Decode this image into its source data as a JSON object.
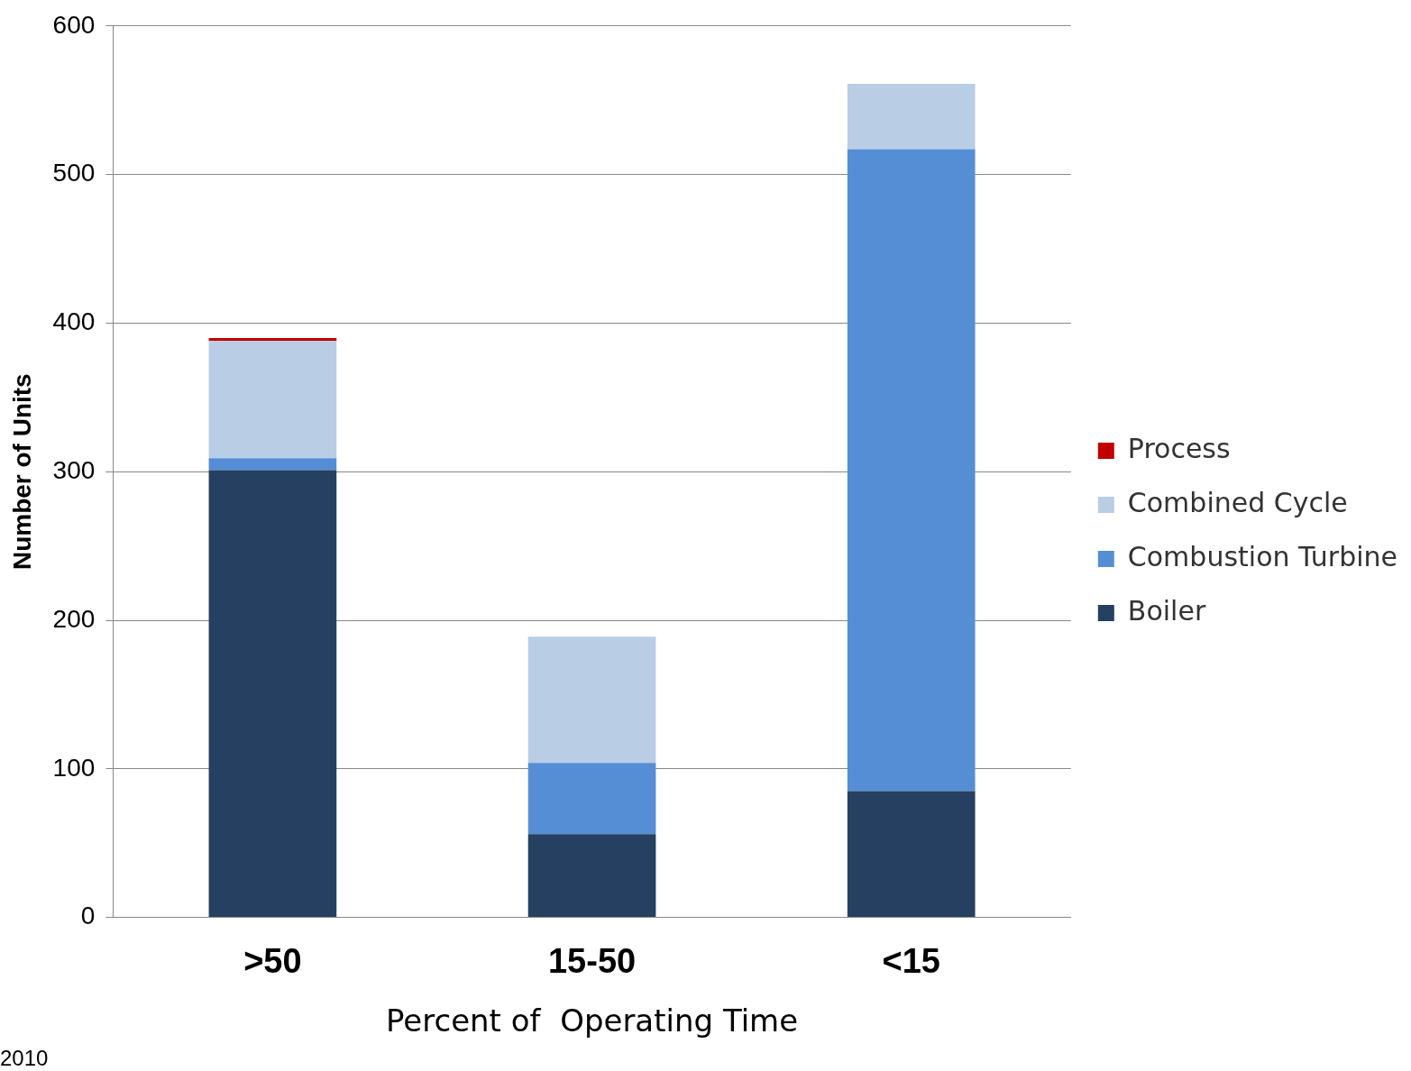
{
  "chart_data": {
    "type": "bar",
    "stacked": true,
    "xlabel": "Percent of  Operating Time",
    "ylabel": "Number of Units",
    "categories": [
      ">50",
      "15-50",
      "<15"
    ],
    "series": [
      {
        "name": "Boiler",
        "color": "#254061",
        "values": [
          301,
          56,
          85
        ]
      },
      {
        "name": "Combustion Turbine",
        "color": "#558ed5",
        "values": [
          8,
          48,
          432
        ]
      },
      {
        "name": "Combined Cycle",
        "color": "#b9cde5",
        "values": [
          79,
          85,
          44
        ]
      },
      {
        "name": "Process",
        "color": "#c00000",
        "values": [
          2,
          0,
          0
        ]
      }
    ],
    "ylim": [
      0,
      600
    ],
    "yticks": [
      0,
      100,
      200,
      300,
      400,
      500,
      600
    ],
    "grid": "y",
    "legend": "right",
    "annotations": [
      "2010"
    ]
  }
}
